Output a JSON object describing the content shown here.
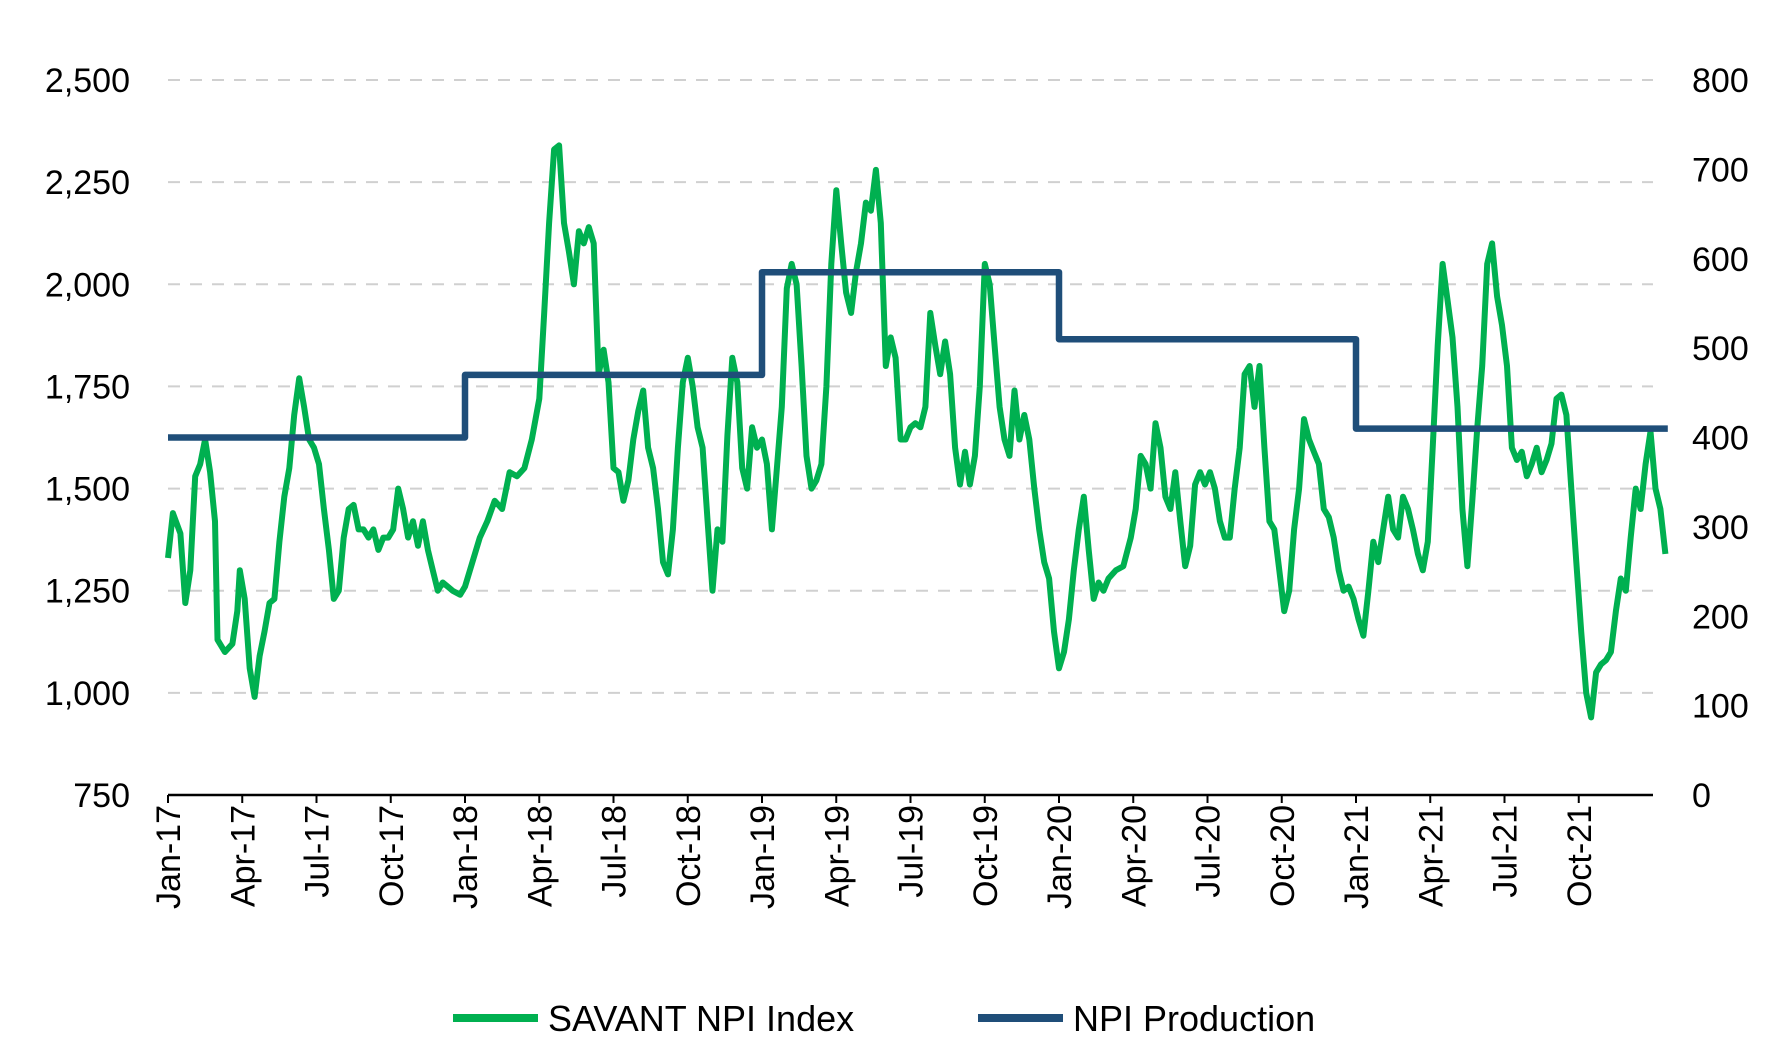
{
  "chart_data": {
    "type": "line",
    "title": "",
    "xlabel": "",
    "ylabel": "",
    "grid": true,
    "legend_position": "bottom",
    "x_tick_labels": [
      "Jan-17",
      "Apr-17",
      "Jul-17",
      "Oct-17",
      "Jan-18",
      "Apr-18",
      "Jul-18",
      "Oct-18",
      "Jan-19",
      "Apr-19",
      "Jul-19",
      "Oct-19",
      "Jan-20",
      "Apr-20",
      "Jul-20",
      "Oct-20",
      "Jan-21",
      "Apr-21",
      "Jul-21",
      "Oct-21"
    ],
    "x_range_months": [
      0,
      60
    ],
    "y_left": {
      "range": [
        750,
        2500
      ],
      "ticks": [
        750,
        1000,
        1250,
        1500,
        1750,
        2000,
        2250,
        2500
      ],
      "tick_labels": [
        "750",
        "1,000",
        "1,250",
        "1,500",
        "1,750",
        "2,000",
        "2,250",
        "2,500"
      ]
    },
    "y_right": {
      "range": [
        0,
        800
      ],
      "ticks": [
        0,
        100,
        200,
        300,
        400,
        500,
        600,
        700,
        800
      ],
      "tick_labels": [
        "0",
        "100",
        "200",
        "300",
        "400",
        "500",
        "600",
        "700",
        "800"
      ]
    },
    "series": [
      {
        "name": "SAVANT NPI Index",
        "axis": "left",
        "color": "#00b050",
        "points": [
          [
            0.0,
            1330
          ],
          [
            0.2,
            1440
          ],
          [
            0.5,
            1390
          ],
          [
            0.7,
            1220
          ],
          [
            0.9,
            1300
          ],
          [
            1.1,
            1530
          ],
          [
            1.3,
            1560
          ],
          [
            1.5,
            1620
          ],
          [
            1.7,
            1540
          ],
          [
            1.9,
            1420
          ],
          [
            2.0,
            1130
          ],
          [
            2.3,
            1100
          ],
          [
            2.6,
            1120
          ],
          [
            2.8,
            1200
          ],
          [
            2.9,
            1300
          ],
          [
            3.1,
            1230
          ],
          [
            3.3,
            1060
          ],
          [
            3.5,
            990
          ],
          [
            3.7,
            1090
          ],
          [
            3.9,
            1150
          ],
          [
            4.1,
            1220
          ],
          [
            4.3,
            1230
          ],
          [
            4.5,
            1370
          ],
          [
            4.7,
            1480
          ],
          [
            4.9,
            1550
          ],
          [
            5.1,
            1680
          ],
          [
            5.3,
            1770
          ],
          [
            5.5,
            1700
          ],
          [
            5.7,
            1620
          ],
          [
            5.9,
            1600
          ],
          [
            6.1,
            1560
          ],
          [
            6.3,
            1450
          ],
          [
            6.5,
            1350
          ],
          [
            6.7,
            1230
          ],
          [
            6.9,
            1250
          ],
          [
            7.1,
            1380
          ],
          [
            7.3,
            1450
          ],
          [
            7.5,
            1460
          ],
          [
            7.7,
            1400
          ],
          [
            7.9,
            1400
          ],
          [
            8.1,
            1380
          ],
          [
            8.3,
            1400
          ],
          [
            8.5,
            1350
          ],
          [
            8.7,
            1380
          ],
          [
            8.9,
            1380
          ],
          [
            9.1,
            1400
          ],
          [
            9.3,
            1500
          ],
          [
            9.5,
            1450
          ],
          [
            9.7,
            1380
          ],
          [
            9.9,
            1420
          ],
          [
            10.1,
            1360
          ],
          [
            10.3,
            1420
          ],
          [
            10.5,
            1350
          ],
          [
            10.7,
            1300
          ],
          [
            10.9,
            1250
          ],
          [
            11.1,
            1270
          ],
          [
            11.3,
            1260
          ],
          [
            11.5,
            1250
          ],
          [
            11.8,
            1240
          ],
          [
            12.0,
            1260
          ],
          [
            12.3,
            1320
          ],
          [
            12.6,
            1380
          ],
          [
            12.9,
            1420
          ],
          [
            13.2,
            1470
          ],
          [
            13.5,
            1450
          ],
          [
            13.8,
            1540
          ],
          [
            14.1,
            1530
          ],
          [
            14.4,
            1550
          ],
          [
            14.7,
            1620
          ],
          [
            15.0,
            1720
          ],
          [
            15.2,
            1930
          ],
          [
            15.4,
            2150
          ],
          [
            15.6,
            2330
          ],
          [
            15.8,
            2340
          ],
          [
            16.0,
            2150
          ],
          [
            16.2,
            2080
          ],
          [
            16.4,
            2000
          ],
          [
            16.6,
            2130
          ],
          [
            16.8,
            2100
          ],
          [
            17.0,
            2140
          ],
          [
            17.2,
            2100
          ],
          [
            17.4,
            1780
          ],
          [
            17.6,
            1840
          ],
          [
            17.8,
            1760
          ],
          [
            18.0,
            1550
          ],
          [
            18.2,
            1540
          ],
          [
            18.4,
            1470
          ],
          [
            18.6,
            1520
          ],
          [
            18.8,
            1620
          ],
          [
            19.0,
            1690
          ],
          [
            19.2,
            1740
          ],
          [
            19.4,
            1600
          ],
          [
            19.6,
            1550
          ],
          [
            19.8,
            1450
          ],
          [
            20.0,
            1320
          ],
          [
            20.2,
            1290
          ],
          [
            20.4,
            1400
          ],
          [
            20.6,
            1600
          ],
          [
            20.8,
            1760
          ],
          [
            21.0,
            1820
          ],
          [
            21.2,
            1750
          ],
          [
            21.4,
            1650
          ],
          [
            21.6,
            1600
          ],
          [
            21.8,
            1420
          ],
          [
            22.0,
            1250
          ],
          [
            22.2,
            1400
          ],
          [
            22.4,
            1370
          ],
          [
            22.6,
            1630
          ],
          [
            22.8,
            1820
          ],
          [
            23.0,
            1760
          ],
          [
            23.2,
            1550
          ],
          [
            23.4,
            1500
          ],
          [
            23.6,
            1650
          ],
          [
            23.8,
            1600
          ],
          [
            24.0,
            1620
          ],
          [
            24.2,
            1560
          ],
          [
            24.4,
            1400
          ],
          [
            24.6,
            1550
          ],
          [
            24.8,
            1700
          ],
          [
            25.0,
            1990
          ],
          [
            25.2,
            2050
          ],
          [
            25.4,
            2000
          ],
          [
            25.6,
            1800
          ],
          [
            25.8,
            1580
          ],
          [
            26.0,
            1500
          ],
          [
            26.2,
            1520
          ],
          [
            26.4,
            1560
          ],
          [
            26.6,
            1750
          ],
          [
            26.8,
            2050
          ],
          [
            27.0,
            2230
          ],
          [
            27.2,
            2100
          ],
          [
            27.4,
            1980
          ],
          [
            27.6,
            1930
          ],
          [
            27.8,
            2030
          ],
          [
            28.0,
            2100
          ],
          [
            28.2,
            2200
          ],
          [
            28.4,
            2180
          ],
          [
            28.6,
            2280
          ],
          [
            28.8,
            2150
          ],
          [
            29.0,
            1800
          ],
          [
            29.2,
            1870
          ],
          [
            29.4,
            1820
          ],
          [
            29.6,
            1620
          ],
          [
            29.8,
            1620
          ],
          [
            30.0,
            1650
          ],
          [
            30.2,
            1660
          ],
          [
            30.4,
            1650
          ],
          [
            30.6,
            1700
          ],
          [
            30.8,
            1930
          ],
          [
            31.0,
            1850
          ],
          [
            31.2,
            1780
          ],
          [
            31.4,
            1860
          ],
          [
            31.6,
            1780
          ],
          [
            31.8,
            1600
          ],
          [
            32.0,
            1510
          ],
          [
            32.2,
            1590
          ],
          [
            32.4,
            1510
          ],
          [
            32.6,
            1580
          ],
          [
            32.8,
            1750
          ],
          [
            33.0,
            2050
          ],
          [
            33.2,
            2000
          ],
          [
            33.4,
            1850
          ],
          [
            33.6,
            1700
          ],
          [
            33.8,
            1620
          ],
          [
            34.0,
            1580
          ],
          [
            34.2,
            1740
          ],
          [
            34.4,
            1620
          ],
          [
            34.6,
            1680
          ],
          [
            34.8,
            1620
          ],
          [
            35.0,
            1500
          ],
          [
            35.2,
            1400
          ],
          [
            35.4,
            1320
          ],
          [
            35.6,
            1280
          ],
          [
            35.8,
            1150
          ],
          [
            36.0,
            1060
          ],
          [
            36.2,
            1100
          ],
          [
            36.4,
            1180
          ],
          [
            36.6,
            1300
          ],
          [
            36.8,
            1400
          ],
          [
            37.0,
            1480
          ],
          [
            37.2,
            1350
          ],
          [
            37.4,
            1230
          ],
          [
            37.6,
            1270
          ],
          [
            37.8,
            1250
          ],
          [
            38.0,
            1280
          ],
          [
            38.3,
            1300
          ],
          [
            38.6,
            1310
          ],
          [
            38.9,
            1380
          ],
          [
            39.1,
            1450
          ],
          [
            39.3,
            1580
          ],
          [
            39.5,
            1560
          ],
          [
            39.7,
            1500
          ],
          [
            39.9,
            1660
          ],
          [
            40.1,
            1600
          ],
          [
            40.3,
            1480
          ],
          [
            40.5,
            1450
          ],
          [
            40.7,
            1540
          ],
          [
            40.9,
            1420
          ],
          [
            41.1,
            1310
          ],
          [
            41.3,
            1360
          ],
          [
            41.5,
            1510
          ],
          [
            41.7,
            1540
          ],
          [
            41.9,
            1510
          ],
          [
            42.1,
            1540
          ],
          [
            42.3,
            1500
          ],
          [
            42.5,
            1420
          ],
          [
            42.7,
            1380
          ],
          [
            42.9,
            1380
          ],
          [
            43.1,
            1500
          ],
          [
            43.3,
            1600
          ],
          [
            43.5,
            1780
          ],
          [
            43.7,
            1800
          ],
          [
            43.9,
            1700
          ],
          [
            44.1,
            1800
          ],
          [
            44.3,
            1600
          ],
          [
            44.5,
            1420
          ],
          [
            44.7,
            1400
          ],
          [
            44.9,
            1300
          ],
          [
            45.1,
            1200
          ],
          [
            45.3,
            1250
          ],
          [
            45.5,
            1400
          ],
          [
            45.7,
            1500
          ],
          [
            45.9,
            1670
          ],
          [
            46.1,
            1620
          ],
          [
            46.3,
            1590
          ],
          [
            46.5,
            1560
          ],
          [
            46.7,
            1450
          ],
          [
            46.9,
            1430
          ],
          [
            47.1,
            1380
          ],
          [
            47.3,
            1300
          ],
          [
            47.5,
            1250
          ],
          [
            47.7,
            1260
          ],
          [
            47.9,
            1230
          ],
          [
            48.1,
            1180
          ],
          [
            48.3,
            1140
          ],
          [
            48.5,
            1250
          ],
          [
            48.7,
            1370
          ],
          [
            48.9,
            1320
          ],
          [
            49.1,
            1400
          ],
          [
            49.3,
            1480
          ],
          [
            49.5,
            1400
          ],
          [
            49.7,
            1380
          ],
          [
            49.9,
            1480
          ],
          [
            50.1,
            1450
          ],
          [
            50.3,
            1400
          ],
          [
            50.5,
            1340
          ],
          [
            50.7,
            1300
          ],
          [
            50.9,
            1370
          ],
          [
            51.1,
            1600
          ],
          [
            51.3,
            1850
          ],
          [
            51.5,
            2050
          ],
          [
            51.7,
            1960
          ],
          [
            51.9,
            1870
          ],
          [
            52.1,
            1700
          ],
          [
            52.3,
            1450
          ],
          [
            52.5,
            1310
          ],
          [
            52.7,
            1470
          ],
          [
            52.9,
            1650
          ],
          [
            53.1,
            1800
          ],
          [
            53.3,
            2050
          ],
          [
            53.5,
            2100
          ],
          [
            53.7,
            1970
          ],
          [
            53.9,
            1900
          ],
          [
            54.1,
            1800
          ],
          [
            54.3,
            1600
          ],
          [
            54.5,
            1570
          ],
          [
            54.7,
            1590
          ],
          [
            54.9,
            1530
          ],
          [
            55.1,
            1560
          ],
          [
            55.3,
            1600
          ],
          [
            55.5,
            1540
          ],
          [
            55.7,
            1570
          ],
          [
            55.9,
            1610
          ],
          [
            56.1,
            1720
          ],
          [
            56.3,
            1730
          ],
          [
            56.5,
            1680
          ],
          [
            56.7,
            1500
          ],
          [
            56.9,
            1320
          ],
          [
            57.1,
            1150
          ],
          [
            57.3,
            1000
          ],
          [
            57.5,
            940
          ],
          [
            57.7,
            1050
          ],
          [
            57.9,
            1070
          ],
          [
            58.1,
            1080
          ],
          [
            58.3,
            1100
          ],
          [
            58.5,
            1200
          ],
          [
            58.7,
            1280
          ],
          [
            58.9,
            1250
          ],
          [
            59.1,
            1380
          ],
          [
            59.3,
            1500
          ],
          [
            59.5,
            1450
          ],
          [
            59.7,
            1560
          ],
          [
            59.9,
            1640
          ],
          [
            60.1,
            1500
          ],
          [
            60.3,
            1450
          ],
          [
            60.5,
            1340
          ]
        ]
      },
      {
        "name": "NPI Production",
        "axis": "right",
        "color": "#1f4e79",
        "points": [
          [
            0,
            400
          ],
          [
            12,
            400
          ],
          [
            12,
            470
          ],
          [
            24,
            470
          ],
          [
            24,
            585
          ],
          [
            36,
            585
          ],
          [
            36,
            510
          ],
          [
            48,
            510
          ],
          [
            48,
            410
          ],
          [
            60.6,
            410
          ]
        ]
      }
    ]
  }
}
